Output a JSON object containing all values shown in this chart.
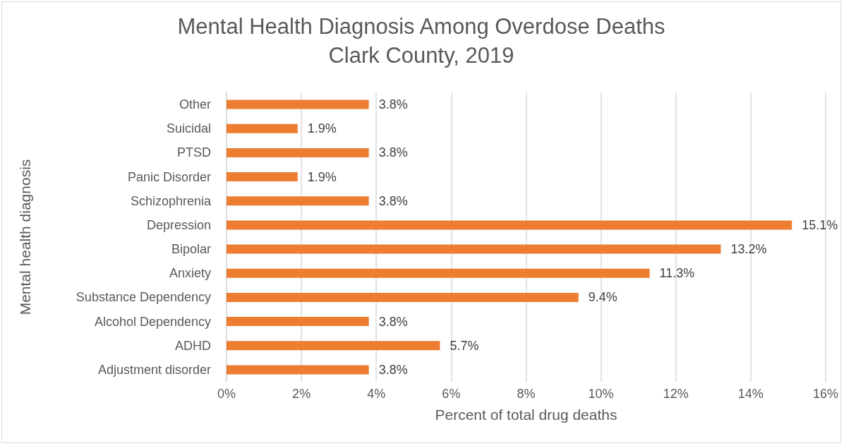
{
  "chart_data": {
    "type": "bar",
    "orientation": "horizontal",
    "title": "Mental Health Diagnosis Among Overdose Deaths",
    "subtitle": "Clark County, 2019",
    "xlabel": "Percent of total drug deaths",
    "ylabel": "Mental health diagnosis",
    "categories": [
      "Other",
      "Suicidal",
      "PTSD",
      "Panic Disorder",
      "Schizophrenia",
      "Depression",
      "Bipolar",
      "Anxiety",
      "Substance Dependency",
      "Alcohol Dependency",
      "ADHD",
      "Adjustment disorder"
    ],
    "values": [
      3.8,
      1.9,
      3.8,
      1.9,
      3.8,
      15.1,
      13.2,
      11.3,
      9.4,
      3.8,
      5.7,
      3.8
    ],
    "value_labels": [
      "3.8%",
      "1.9%",
      "3.8%",
      "1.9%",
      "3.8%",
      "15.1%",
      "13.2%",
      "11.3%",
      "9.4%",
      "3.8%",
      "5.7%",
      "3.8%"
    ],
    "color": "#ed7d31",
    "xlim": [
      0,
      16
    ],
    "xticks": [
      {
        "value": 0,
        "label": "0%"
      },
      {
        "value": 2,
        "label": "2%"
      },
      {
        "value": 4,
        "label": "4%"
      },
      {
        "value": 6,
        "label": "6%"
      },
      {
        "value": 8,
        "label": "8%"
      },
      {
        "value": 10,
        "label": "10%"
      },
      {
        "value": 12,
        "label": "12%"
      },
      {
        "value": 14,
        "label": "14%"
      },
      {
        "value": 16,
        "label": "16%"
      }
    ],
    "grid": "x"
  }
}
